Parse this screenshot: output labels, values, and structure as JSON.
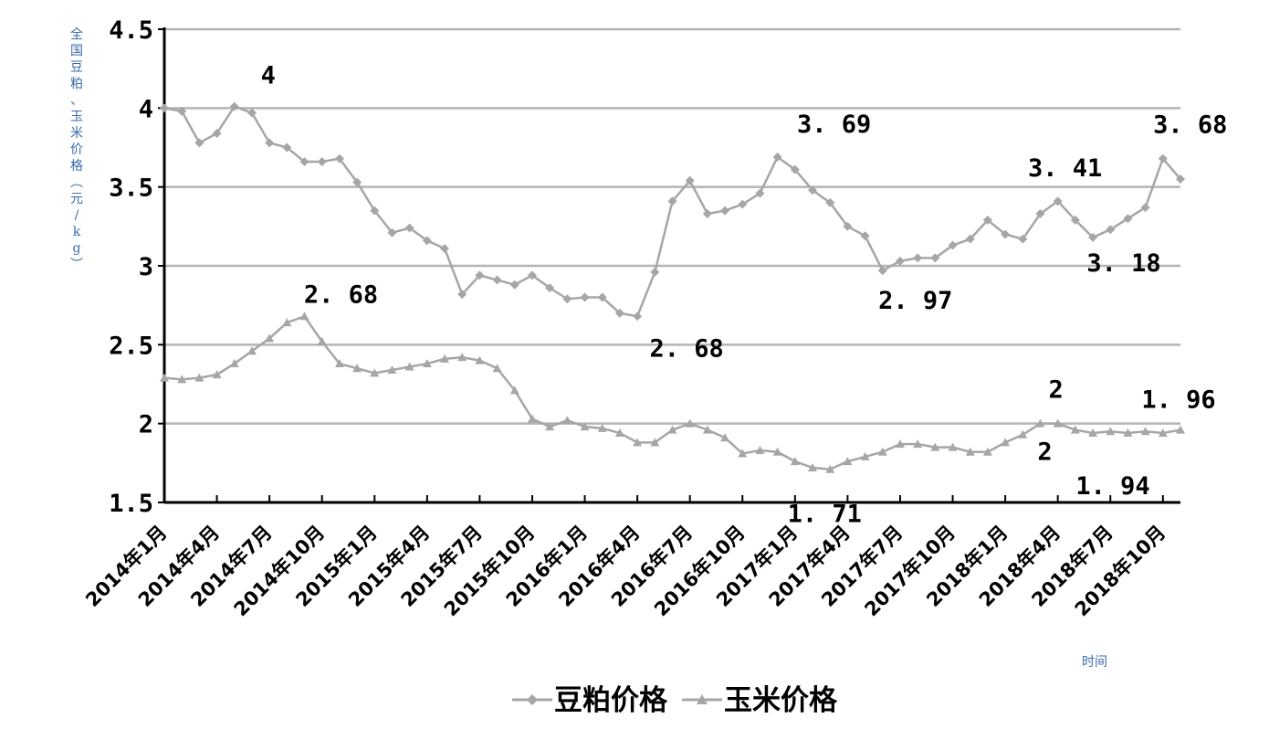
{
  "chart_data": {
    "type": "line",
    "title": "",
    "xlabel": "时间",
    "ylabel": "全国豆粕、玉米价格(元/kg)",
    "ylim": [
      1.5,
      4.5
    ],
    "yticks": [
      "1.5",
      "2",
      "2.5",
      "3",
      "3.5",
      "4",
      "4.5"
    ],
    "grid": true,
    "legend_position": "bottom",
    "x": [
      "2014-01",
      "2014-02",
      "2014-03",
      "2014-04",
      "2014-05",
      "2014-06",
      "2014-07",
      "2014-08",
      "2014-09",
      "2014-10",
      "2014-11",
      "2014-12",
      "2015-01",
      "2015-02",
      "2015-03",
      "2015-04",
      "2015-05",
      "2015-06",
      "2015-07",
      "2015-08",
      "2015-09",
      "2015-10",
      "2015-11",
      "2015-12",
      "2016-01",
      "2016-02",
      "2016-03",
      "2016-04",
      "2016-05",
      "2016-06",
      "2016-07",
      "2016-08",
      "2016-09",
      "2016-10",
      "2016-11",
      "2016-12",
      "2017-01",
      "2017-02",
      "2017-03",
      "2017-04",
      "2017-05",
      "2017-06",
      "2017-07",
      "2017-08",
      "2017-09",
      "2017-10",
      "2017-11",
      "2017-12",
      "2018-01",
      "2018-02",
      "2018-03",
      "2018-04",
      "2018-05",
      "2018-06",
      "2018-07",
      "2018-08",
      "2018-09",
      "2018-10",
      "2018-11"
    ],
    "x_tick_labels": [
      "2014年1月",
      "2014年4月",
      "2014年7月",
      "2014年10月",
      "2015年1月",
      "2015年4月",
      "2015年7月",
      "2015年10月",
      "2016年1月",
      "2016年4月",
      "2016年7月",
      "2016年10月",
      "2017年1月",
      "2017年4月",
      "2017年7月",
      "2017年10月",
      "2018年1月",
      "2018年4月",
      "2018年7月",
      "2018年10月"
    ],
    "series": [
      {
        "name": "豆粕价格",
        "marker": "diamond",
        "color": "#a6a6a6",
        "values": [
          4.0,
          3.98,
          3.78,
          3.84,
          4.01,
          3.97,
          3.78,
          3.75,
          3.66,
          3.66,
          3.68,
          3.53,
          3.35,
          3.21,
          3.24,
          3.16,
          3.11,
          2.82,
          2.94,
          2.91,
          2.88,
          2.94,
          2.86,
          2.79,
          2.8,
          2.8,
          2.7,
          2.68,
          2.96,
          3.41,
          3.54,
          3.33,
          3.35,
          3.39,
          3.46,
          3.69,
          3.61,
          3.48,
          3.4,
          3.25,
          3.19,
          2.97,
          3.03,
          3.05,
          3.05,
          3.13,
          3.17,
          3.29,
          3.2,
          3.17,
          3.33,
          3.41,
          3.29,
          3.18,
          3.23,
          3.3,
          3.37,
          3.68,
          3.55
        ]
      },
      {
        "name": "玉米价格",
        "marker": "triangle",
        "color": "#a6a6a6",
        "values": [
          2.29,
          2.28,
          2.29,
          2.31,
          2.38,
          2.46,
          2.54,
          2.64,
          2.68,
          2.52,
          2.38,
          2.35,
          2.32,
          2.34,
          2.36,
          2.38,
          2.41,
          2.42,
          2.4,
          2.35,
          2.21,
          2.03,
          1.98,
          2.02,
          1.98,
          1.97,
          1.94,
          1.88,
          1.88,
          1.96,
          2.0,
          1.96,
          1.91,
          1.81,
          1.83,
          1.82,
          1.76,
          1.72,
          1.71,
          1.76,
          1.79,
          1.82,
          1.87,
          1.87,
          1.85,
          1.85,
          1.82,
          1.82,
          1.88,
          1.93,
          2.0,
          2.0,
          1.96,
          1.94,
          1.95,
          1.94,
          1.95,
          1.94,
          1.96
        ]
      }
    ],
    "annotations": [
      {
        "text": "4",
        "series": 0,
        "index": 4
      },
      {
        "text": "3. 69",
        "series": 0,
        "index": 35
      },
      {
        "text": "3. 68",
        "series": 0,
        "index": 57
      },
      {
        "text": "3. 41",
        "series": 0,
        "index": 51
      },
      {
        "text": "2. 97",
        "series": 0,
        "index": 41
      },
      {
        "text": "3. 18",
        "series": 0,
        "index": 53
      },
      {
        "text": "2. 68",
        "series": 0,
        "index": 27
      },
      {
        "text": "2. 68",
        "series": 1,
        "index": 8
      },
      {
        "text": "1. 71",
        "series": 1,
        "index": 38
      },
      {
        "text": "2",
        "series": 1,
        "index": 50
      },
      {
        "text": "2",
        "series": 1,
        "index": 51
      },
      {
        "text": "1. 96",
        "series": 1,
        "index": 58
      },
      {
        "text": "1. 94",
        "series": 1,
        "index": 53
      }
    ]
  }
}
